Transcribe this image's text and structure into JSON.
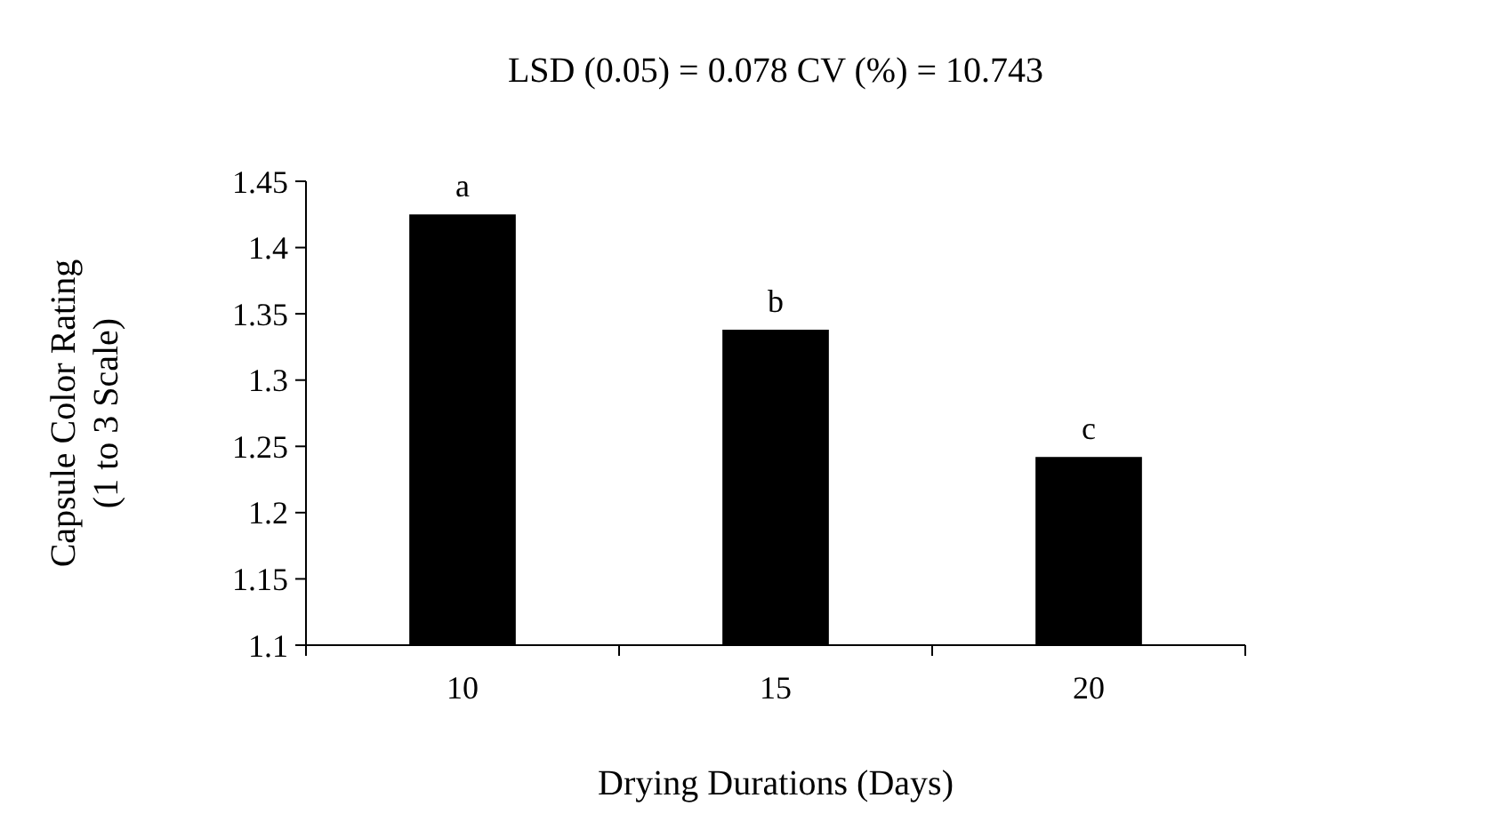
{
  "chart_data": {
    "type": "bar",
    "title": "LSD (0.05) = 0.078  CV (%) =  10.743",
    "xlabel": "Drying Durations (Days)",
    "ylabel": "Capsule Color Rating\n(1 to 3 Scale)",
    "categories": [
      "10",
      "15",
      "20"
    ],
    "values": [
      1.425,
      1.338,
      1.242
    ],
    "color": "#000000",
    "value_labels": [
      "a",
      "b",
      "c"
    ],
    "ylim": [
      1.1,
      1.45
    ],
    "yticks": [
      1.1,
      1.15,
      1.2,
      1.25,
      1.3,
      1.35,
      1.4,
      1.45
    ],
    "grid": false
  }
}
